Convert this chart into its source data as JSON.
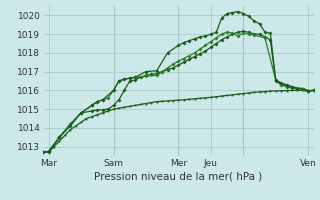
{
  "xlabel": "Pression niveau de la mer( hPa )",
  "bg_color": "#cce8e8",
  "grid_color": "#aacccc",
  "line_color_dark": "#1a5c1a",
  "line_color_light": "#2e7d2e",
  "ylim": [
    1012.5,
    1020.5
  ],
  "xlim": [
    0,
    100
  ],
  "xtick_positions": [
    2,
    26,
    50,
    62,
    74,
    98
  ],
  "xtick_labels": [
    "Mar",
    "Sam",
    "Mer",
    "Jeu",
    "",
    "Ven"
  ],
  "ytick_positions": [
    1013,
    1014,
    1015,
    1016,
    1017,
    1018,
    1019,
    1020
  ],
  "vline_positions": [
    26,
    50,
    74
  ],
  "line1_x": [
    0,
    2,
    4,
    6,
    8,
    10,
    12,
    14,
    16,
    18,
    20,
    22,
    24,
    26,
    28,
    30,
    32,
    34,
    36,
    38,
    40,
    42,
    44,
    46,
    48,
    50,
    52,
    54,
    56,
    58,
    60,
    62,
    64,
    66,
    68,
    70,
    72,
    74,
    76,
    78,
    80,
    82,
    84,
    86,
    88,
    90,
    92,
    94,
    96,
    98,
    100
  ],
  "line1_y": [
    1012.7,
    1012.7,
    1013.0,
    1013.3,
    1013.6,
    1013.9,
    1014.1,
    1014.3,
    1014.5,
    1014.6,
    1014.7,
    1014.8,
    1014.9,
    1015.0,
    1015.05,
    1015.1,
    1015.15,
    1015.2,
    1015.25,
    1015.3,
    1015.35,
    1015.4,
    1015.42,
    1015.44,
    1015.46,
    1015.48,
    1015.5,
    1015.52,
    1015.55,
    1015.58,
    1015.6,
    1015.63,
    1015.66,
    1015.7,
    1015.73,
    1015.76,
    1015.8,
    1015.83,
    1015.86,
    1015.9,
    1015.92,
    1015.94,
    1015.96,
    1015.97,
    1015.98,
    1015.99,
    1016.0,
    1016.0,
    1016.0,
    1015.95,
    1016.0
  ],
  "line2_x": [
    0,
    2,
    6,
    10,
    14,
    18,
    20,
    22,
    24,
    26,
    28,
    30,
    32,
    34,
    36,
    38,
    40,
    42,
    44,
    46,
    48,
    50,
    52,
    54,
    56,
    58,
    60,
    62,
    64,
    66,
    68,
    70,
    72,
    74,
    76,
    78,
    80,
    82,
    84,
    86,
    88,
    90,
    92,
    94,
    96,
    98,
    100
  ],
  "line2_y": [
    1012.7,
    1012.7,
    1013.5,
    1014.2,
    1014.8,
    1014.9,
    1014.95,
    1014.97,
    1015.0,
    1015.2,
    1015.5,
    1016.0,
    1016.5,
    1016.55,
    1016.7,
    1016.8,
    1016.85,
    1016.9,
    1017.0,
    1017.1,
    1017.2,
    1017.35,
    1017.5,
    1017.65,
    1017.8,
    1017.95,
    1018.1,
    1018.3,
    1018.5,
    1018.7,
    1018.85,
    1019.0,
    1019.1,
    1019.15,
    1019.1,
    1019.0,
    1019.0,
    1018.85,
    1018.7,
    1016.5,
    1016.3,
    1016.2,
    1016.15,
    1016.1,
    1016.1,
    1015.98,
    1016.0
  ],
  "line3_x": [
    0,
    2,
    6,
    10,
    14,
    18,
    20,
    22,
    24,
    26,
    28,
    30,
    32,
    34,
    38,
    42,
    44,
    46,
    48,
    50,
    52,
    54,
    56,
    58,
    60,
    62,
    64,
    66,
    68,
    70,
    72,
    74,
    76,
    78,
    82,
    86,
    88,
    90,
    92,
    96,
    98,
    100
  ],
  "line3_y": [
    1012.7,
    1012.75,
    1013.5,
    1014.2,
    1014.8,
    1015.2,
    1015.4,
    1015.5,
    1015.6,
    1016.0,
    1016.5,
    1016.6,
    1016.65,
    1016.7,
    1016.75,
    1016.8,
    1017.0,
    1017.2,
    1017.4,
    1017.55,
    1017.7,
    1017.85,
    1018.0,
    1018.2,
    1018.4,
    1018.6,
    1018.8,
    1019.0,
    1019.1,
    1019.05,
    1018.9,
    1019.05,
    1019.0,
    1018.95,
    1018.8,
    1016.55,
    1016.35,
    1016.25,
    1016.15,
    1016.1,
    1015.98,
    1016.0
  ],
  "line4_x": [
    0,
    2,
    6,
    10,
    14,
    18,
    20,
    22,
    26,
    28,
    30,
    32,
    34,
    38,
    42,
    46,
    50,
    52,
    54,
    56,
    58,
    60,
    62,
    64,
    66,
    68,
    70,
    72,
    74,
    76,
    78,
    80,
    82,
    84,
    86,
    88,
    90,
    92,
    98,
    100
  ],
  "line4_y": [
    1012.7,
    1012.75,
    1013.5,
    1014.1,
    1014.8,
    1015.2,
    1015.4,
    1015.5,
    1016.0,
    1016.5,
    1016.6,
    1016.65,
    1016.7,
    1017.0,
    1017.05,
    1018.0,
    1018.4,
    1018.55,
    1018.65,
    1018.75,
    1018.85,
    1018.9,
    1019.0,
    1019.1,
    1019.85,
    1020.1,
    1020.15,
    1020.2,
    1020.1,
    1019.95,
    1019.7,
    1019.55,
    1019.1,
    1019.05,
    1016.55,
    1016.4,
    1016.3,
    1016.2,
    1015.98,
    1016.0
  ]
}
